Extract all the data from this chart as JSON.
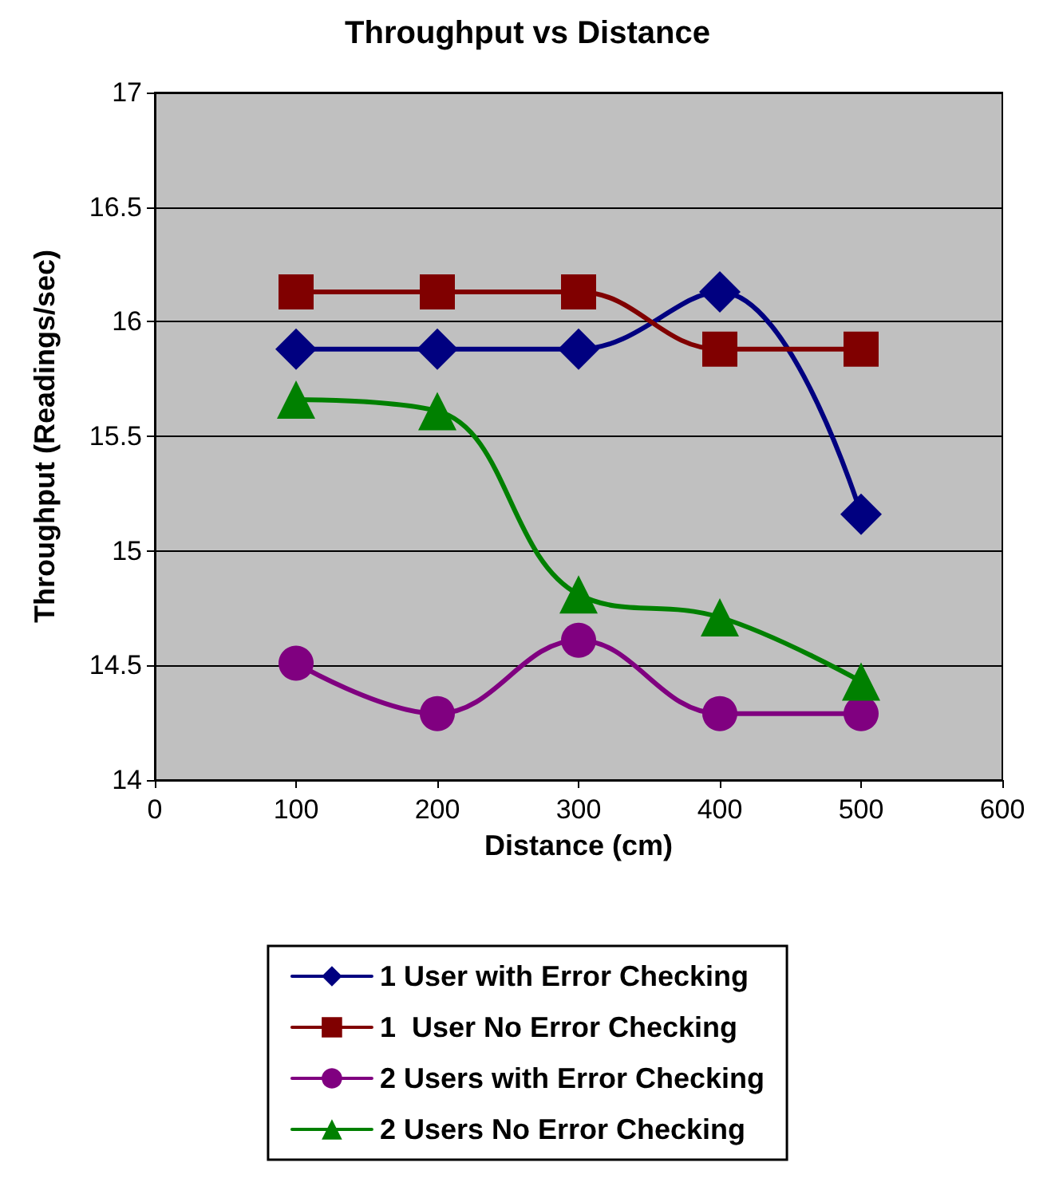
{
  "chart_data": {
    "type": "line",
    "title": "Throughput vs Distance",
    "xlabel": "Distance (cm)",
    "ylabel": "Throughput (Readings/sec)",
    "x": [
      100,
      200,
      300,
      400,
      500
    ],
    "series": [
      {
        "name": "1 User with Error Checking",
        "color": "#000080",
        "marker": "diamond",
        "values": [
          15.88,
          15.88,
          15.88,
          16.13,
          15.16
        ]
      },
      {
        "name": "1  User No Error Checking",
        "color": "#800000",
        "marker": "square",
        "values": [
          16.13,
          16.13,
          16.13,
          15.88,
          15.88
        ]
      },
      {
        "name": "2 Users with Error Checking",
        "color": "#800080",
        "marker": "circle",
        "values": [
          14.51,
          14.29,
          14.61,
          14.29,
          14.29
        ]
      },
      {
        "name": "2 Users No Error Checking",
        "color": "#008000",
        "marker": "triangle",
        "values": [
          15.66,
          15.61,
          14.81,
          14.71,
          14.43
        ]
      }
    ],
    "xlim": [
      0,
      600
    ],
    "xticks": [
      0,
      100,
      200,
      300,
      400,
      500,
      600
    ],
    "ylim": [
      14,
      17
    ],
    "yticks": [
      14,
      14.5,
      15,
      15.5,
      16,
      16.5,
      17
    ],
    "grid": "y",
    "legend": "bottom"
  }
}
